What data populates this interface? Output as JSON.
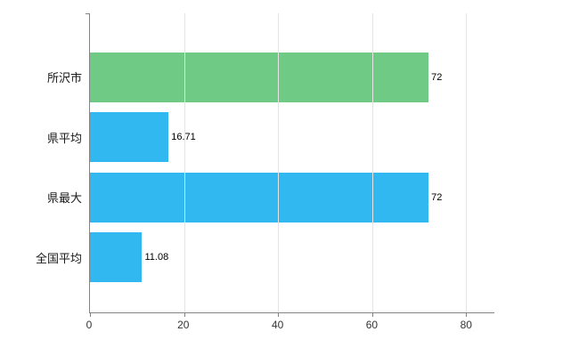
{
  "chart_data": {
    "type": "bar",
    "orientation": "horizontal",
    "title": "",
    "xlabel": "",
    "ylabel": "",
    "categories": [
      "所沢市",
      "県平均",
      "県最大",
      "全国平均"
    ],
    "values": [
      72,
      16.71,
      72,
      11.08
    ],
    "value_labels": [
      "72",
      "16.71",
      "72",
      "11.08"
    ],
    "bar_colors": [
      "#6fca86",
      "#31b8f0",
      "#31b8f0",
      "#31b8f0"
    ],
    "x_ticks": [
      0,
      20,
      40,
      60,
      80
    ],
    "x_tick_labels": [
      "0",
      "20",
      "40",
      "60",
      "80"
    ],
    "xlim": [
      0,
      86
    ],
    "grid": "vertical",
    "legend": "none",
    "colors": {
      "axis": "#848484",
      "gridline": "#e4e4e4",
      "value_label": "#000000",
      "tick_label": "#333333",
      "category_label": "#1a1a1a",
      "background": "#ffffff"
    }
  }
}
